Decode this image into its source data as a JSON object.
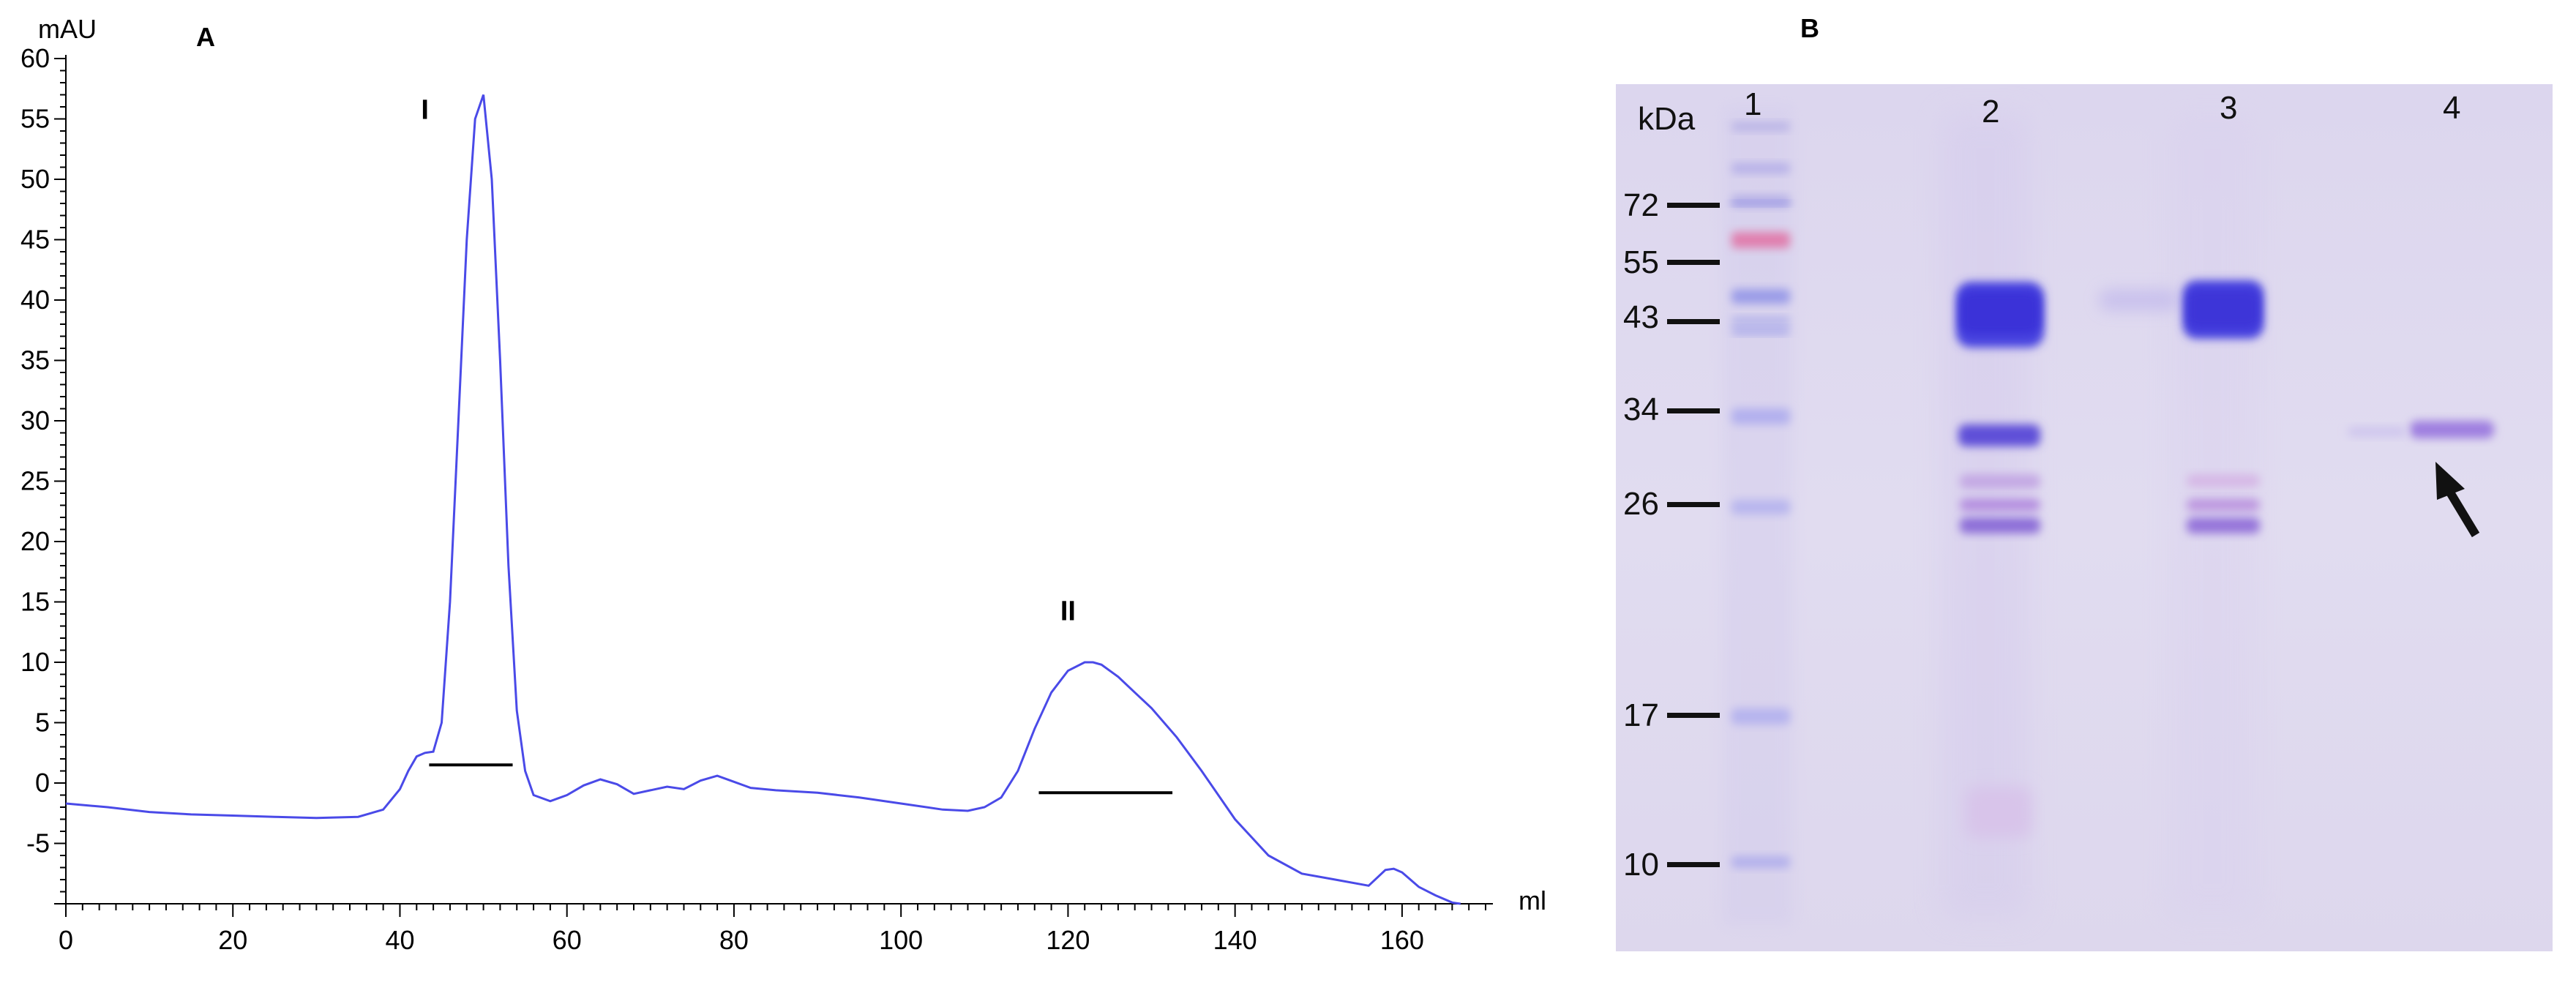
{
  "panels": {
    "a_label": "A",
    "b_label": "B"
  },
  "chart_data": [
    {
      "type": "line",
      "title": "",
      "xlabel": "ml",
      "ylabel": "mAU",
      "xlim": [
        0,
        170
      ],
      "ylim": [
        -10,
        60
      ],
      "x_ticks": [
        0,
        20,
        40,
        60,
        80,
        100,
        120,
        140,
        160
      ],
      "y_ticks": [
        -5,
        0,
        5,
        10,
        15,
        20,
        25,
        30,
        35,
        40,
        45,
        50,
        55,
        60
      ],
      "line_color": "#4a4ae8",
      "series": [
        {
          "x": [
            0,
            5,
            10,
            15,
            20,
            25,
            30,
            35,
            38,
            40,
            41,
            42,
            43,
            44,
            45,
            46,
            47,
            48,
            49,
            50,
            51,
            52,
            53,
            54,
            55,
            56,
            58,
            60,
            62,
            64,
            66,
            68,
            70,
            72,
            74,
            76,
            78,
            80,
            82,
            85,
            90,
            95,
            100,
            105,
            108,
            110,
            112,
            114,
            116,
            118,
            120,
            122,
            123,
            124,
            126,
            128,
            130,
            133,
            136,
            140,
            144,
            148,
            152,
            156,
            158,
            159,
            160,
            162,
            164,
            166,
            167
          ],
          "y": [
            -1.7,
            -2.0,
            -2.4,
            -2.6,
            -2.7,
            -2.8,
            -2.9,
            -2.8,
            -2.2,
            -0.5,
            1.0,
            2.2,
            2.5,
            2.6,
            5.0,
            15.0,
            30.0,
            45.0,
            55.0,
            57.0,
            50.0,
            35.0,
            18.0,
            6.0,
            1.0,
            -1.0,
            -1.5,
            -1.0,
            -0.2,
            0.3,
            -0.1,
            -0.9,
            -0.6,
            -0.3,
            -0.5,
            0.2,
            0.6,
            0.1,
            -0.4,
            -0.6,
            -0.8,
            -1.2,
            -1.7,
            -2.2,
            -2.3,
            -2.0,
            -1.2,
            1.0,
            4.5,
            7.5,
            9.3,
            10.0,
            10.0,
            9.8,
            8.8,
            7.5,
            6.2,
            3.8,
            1.0,
            -3.0,
            -6.0,
            -7.5,
            -8.0,
            -8.5,
            -7.2,
            -7.1,
            -7.4,
            -8.6,
            -9.3,
            -9.9,
            -10.0
          ]
        }
      ],
      "annotations": [
        {
          "text": "I",
          "x": 43,
          "y": 55
        },
        {
          "text": "II",
          "x": 120,
          "y": 13.5
        }
      ],
      "fraction_bars": [
        {
          "x_start": 43.5,
          "x_end": 53.5,
          "y": 1.5
        },
        {
          "x_start": 116.5,
          "x_end": 132.5,
          "y": -0.8
        }
      ]
    }
  ],
  "gel": {
    "marker_unit": "kDa",
    "lanes": [
      "1",
      "2",
      "3",
      "4"
    ],
    "markers": [
      "72",
      "55",
      "43",
      "34",
      "26",
      "17",
      "10"
    ]
  }
}
